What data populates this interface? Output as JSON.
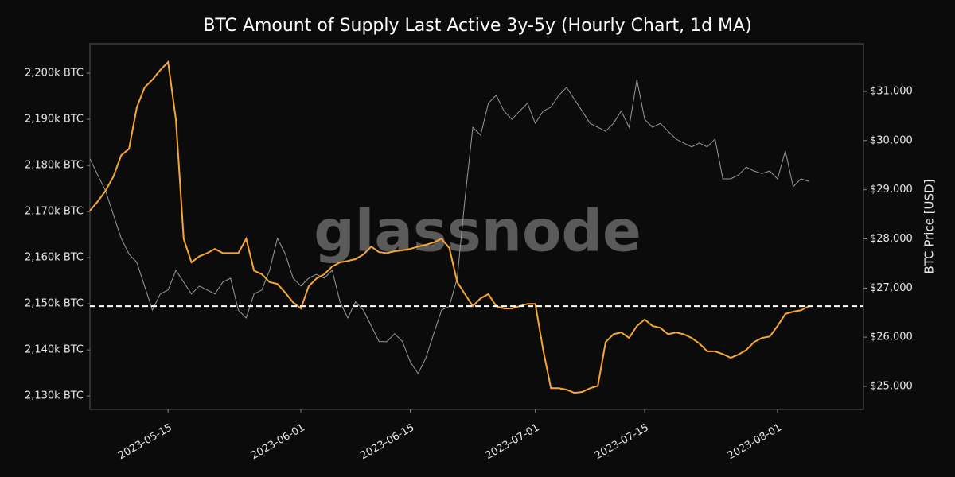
{
  "chart_data": {
    "type": "line",
    "title": "BTC Amount of Supply Last Active 3y-5y (Hourly Chart, 1d MA)",
    "y2label": "BTC Price [USD]",
    "watermark": "glassnode",
    "x": [
      "2023-05-05",
      "2023-05-06",
      "2023-05-07",
      "2023-05-08",
      "2023-05-09",
      "2023-05-10",
      "2023-05-11",
      "2023-05-12",
      "2023-05-13",
      "2023-05-14",
      "2023-05-15",
      "2023-05-16",
      "2023-05-17",
      "2023-05-18",
      "2023-05-19",
      "2023-05-20",
      "2023-05-21",
      "2023-05-22",
      "2023-05-23",
      "2023-05-24",
      "2023-05-25",
      "2023-05-26",
      "2023-05-27",
      "2023-05-28",
      "2023-05-29",
      "2023-05-30",
      "2023-05-31",
      "2023-06-01",
      "2023-06-02",
      "2023-06-03",
      "2023-06-04",
      "2023-06-05",
      "2023-06-06",
      "2023-06-07",
      "2023-06-08",
      "2023-06-09",
      "2023-06-10",
      "2023-06-11",
      "2023-06-12",
      "2023-06-13",
      "2023-06-14",
      "2023-06-15",
      "2023-06-16",
      "2023-06-17",
      "2023-06-18",
      "2023-06-19",
      "2023-06-20",
      "2023-06-21",
      "2023-06-22",
      "2023-06-23",
      "2023-06-24",
      "2023-06-25",
      "2023-06-26",
      "2023-06-27",
      "2023-06-28",
      "2023-06-29",
      "2023-06-30",
      "2023-07-01",
      "2023-07-02",
      "2023-07-03",
      "2023-07-04",
      "2023-07-05",
      "2023-07-06",
      "2023-07-07",
      "2023-07-08",
      "2023-07-09",
      "2023-07-10",
      "2023-07-11",
      "2023-07-12",
      "2023-07-13",
      "2023-07-14",
      "2023-07-15",
      "2023-07-16",
      "2023-07-17",
      "2023-07-18",
      "2023-07-19",
      "2023-07-20",
      "2023-07-21",
      "2023-07-22",
      "2023-07-23",
      "2023-07-24",
      "2023-07-25",
      "2023-07-26",
      "2023-07-27",
      "2023-07-28",
      "2023-07-29",
      "2023-07-30",
      "2023-07-31",
      "2023-08-01",
      "2023-08-02",
      "2023-08-03",
      "2023-08-04",
      "2023-08-05"
    ],
    "series": [
      {
        "color": "#f7a732",
        "axis": "y",
        "values": [
          2170200,
          2172200,
          2174500,
          2177600,
          2182200,
          2183600,
          2192600,
          2196900,
          2198600,
          2200700,
          2202400,
          2190000,
          2164100,
          2159000,
          2160300,
          2161000,
          2161900,
          2161000,
          2161000,
          2161000,
          2164100,
          2157200,
          2156400,
          2154700,
          2154300,
          2152400,
          2150300,
          2149000,
          2153800,
          2155500,
          2156400,
          2158100,
          2159000,
          2159300,
          2159700,
          2160700,
          2162400,
          2161200,
          2161000,
          2161400,
          2161600,
          2161900,
          2162400,
          2162800,
          2163300,
          2164100,
          2162100,
          2154700,
          2152100,
          2149500,
          2151200,
          2152100,
          2149500,
          2149000,
          2149000,
          2149500,
          2150000,
          2150000,
          2140000,
          2131700,
          2131700,
          2131400,
          2130700,
          2130900,
          2131700,
          2132200,
          2141700,
          2143400,
          2143800,
          2142600,
          2145200,
          2146600,
          2145200,
          2144800,
          2143400,
          2143800,
          2143400,
          2142600,
          2141400,
          2139700,
          2139700,
          2139100,
          2138300,
          2139000,
          2140000,
          2141700,
          2142600,
          2142900,
          2145200,
          2147800,
          2148300,
          2148600,
          2149500
        ]
      },
      {
        "color": "#9a9a9a",
        "axis": "y2",
        "values": [
          29630,
          29300,
          28980,
          28490,
          28010,
          27690,
          27520,
          27040,
          26550,
          26880,
          26960,
          27360,
          27120,
          26880,
          27040,
          26960,
          26880,
          27120,
          27200,
          26550,
          26390,
          26880,
          26960,
          27360,
          28010,
          27690,
          27200,
          27040,
          27200,
          27280,
          27200,
          27360,
          26720,
          26390,
          26720,
          26550,
          26230,
          25910,
          25910,
          26070,
          25910,
          25500,
          25260,
          25580,
          26070,
          26550,
          26630,
          27200,
          28820,
          30270,
          30110,
          30760,
          30920,
          30600,
          30430,
          30600,
          30760,
          30350,
          30600,
          30680,
          30920,
          31080,
          30840,
          30600,
          30350,
          30270,
          30190,
          30350,
          30600,
          30270,
          31240,
          30430,
          30270,
          30350,
          30190,
          30030,
          29950,
          29870,
          29950,
          29870,
          30030,
          29220,
          29220,
          29300,
          29460,
          29380,
          29330,
          29380,
          29220,
          29790,
          29060,
          29220,
          29170
        ]
      }
    ],
    "xlim": [
      "2023-05-05",
      "2023-08-12"
    ],
    "xticks": [
      "2023-05-15",
      "2023-06-01",
      "2023-06-15",
      "2023-07-01",
      "2023-07-15",
      "2023-08-01"
    ],
    "ylim": [
      2127100,
      2206400
    ],
    "yticks": [
      {
        "value": 2130000,
        "label": "2,130k BTC"
      },
      {
        "value": 2140000,
        "label": "2,140k BTC"
      },
      {
        "value": 2150000,
        "label": "2,150k BTC"
      },
      {
        "value": 2160000,
        "label": "2,160k BTC"
      },
      {
        "value": 2170000,
        "label": "2,170k BTC"
      },
      {
        "value": 2180000,
        "label": "2,180k BTC"
      },
      {
        "value": 2190000,
        "label": "2,190k BTC"
      },
      {
        "value": 2200000,
        "label": "2,200k BTC"
      }
    ],
    "y2lim": [
      24530,
      31970
    ],
    "y2ticks": [
      {
        "value": 25000,
        "label": "$25,000"
      },
      {
        "value": 26000,
        "label": "$26,000"
      },
      {
        "value": 27000,
        "label": "$27,000"
      },
      {
        "value": 28000,
        "label": "$28,000"
      },
      {
        "value": 29000,
        "label": "$29,000"
      },
      {
        "value": 30000,
        "label": "$30,000"
      },
      {
        "value": 31000,
        "label": "$31,000"
      }
    ],
    "hline": {
      "value": 2149500,
      "color": "#ffffff",
      "style": "dashed"
    },
    "grid": false
  }
}
